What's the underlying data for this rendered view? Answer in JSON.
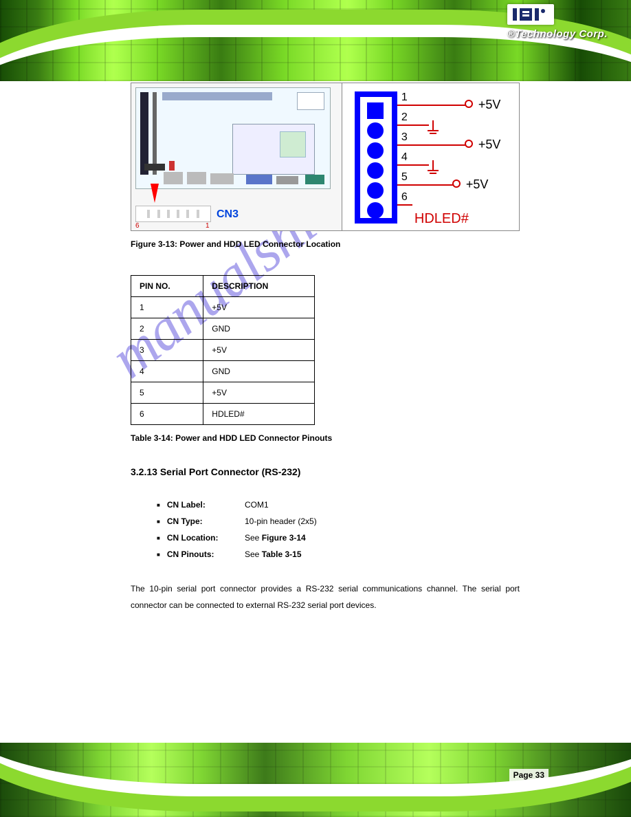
{
  "brand": {
    "logo_text": "iEi",
    "tagline": "®Technology Corp."
  },
  "watermark": "manualshive.com",
  "figure": {
    "connector_label": "CN3",
    "pin_min_label": "6",
    "pin_max_label": "1",
    "pins": [
      {
        "n": "1",
        "label": "+5V",
        "type": "open"
      },
      {
        "n": "2",
        "label": "",
        "type": "gnd"
      },
      {
        "n": "3",
        "label": "+5V",
        "type": "open"
      },
      {
        "n": "4",
        "label": "",
        "type": "gnd"
      },
      {
        "n": "5",
        "label": "+5V",
        "type": "open"
      },
      {
        "n": "6",
        "label": "",
        "type": "none"
      }
    ],
    "bottom_signal": "HDLED#",
    "caption": "Figure 3-13: Power and HDD LED Connector Location"
  },
  "table": {
    "headers": [
      "PIN NO.",
      "DESCRIPTION"
    ],
    "rows": [
      [
        "1",
        "+5V"
      ],
      [
        "2",
        "GND"
      ],
      [
        "3",
        "+5V"
      ],
      [
        "4",
        "GND"
      ],
      [
        "5",
        "+5V"
      ],
      [
        "6",
        "HDLED#"
      ]
    ],
    "caption": "Table 3-14: Power and HDD LED Connector Pinouts"
  },
  "section": {
    "number": "3.2.13",
    "title": "Serial Port Connector (RS-232)",
    "specs": [
      [
        "CN Label:",
        "COM1"
      ],
      [
        "CN Type:",
        "10-pin header (2x5)"
      ],
      [
        "CN Location:",
        "See Figure 3-14"
      ],
      [
        "CN Pinouts:",
        "See Table 3-15"
      ]
    ],
    "paragraph": "The 10-pin serial port connector provides a RS-232 serial communications channel. The serial port connector can be connected to external RS-232 serial port devices."
  },
  "page_label": "Page 33",
  "colors": {
    "connector_blue": "#0000ff",
    "signal_red": "#d00000",
    "caption_black": "#000000",
    "watermark_purple": "#6a5fe0",
    "pcb_green_dark": "#1a4a0a",
    "pcb_green_light": "#b5ff5c"
  }
}
